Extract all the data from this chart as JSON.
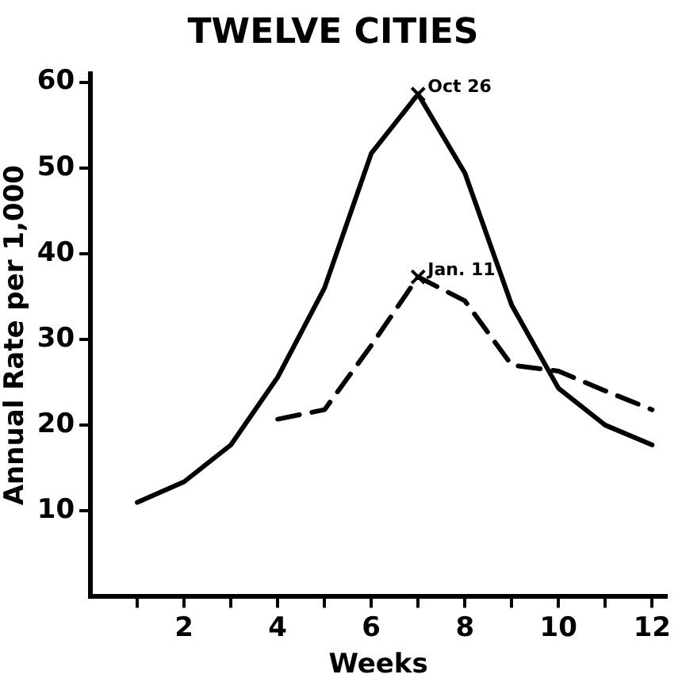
{
  "chart_data": {
    "type": "line",
    "title": "TWELVE CITIES",
    "xlabel": "Weeks",
    "ylabel": "Annual Rate per 1,000",
    "series": [
      {
        "color": "#000000",
        "line_style": "solid",
        "x": [
          1,
          2,
          3,
          4,
          5,
          6,
          7,
          8,
          9,
          10,
          11,
          12
        ],
        "values": [
          11,
          13.4,
          17.7,
          25.6,
          36,
          51.7,
          58.6,
          49.4,
          34,
          24.3,
          20,
          17.7
        ]
      },
      {
        "color": "#000000",
        "line_style": "dashed",
        "x": [
          4,
          5,
          6,
          7,
          8,
          9,
          10,
          11,
          12
        ],
        "values": [
          20.7,
          21.8,
          29.3,
          37.3,
          34.5,
          27,
          26.3,
          24,
          21.8
        ]
      }
    ],
    "xlim": [
      0,
      12.3
    ],
    "ylim": [
      0,
      61
    ],
    "xticks": [
      {
        "value": 1,
        "label": null
      },
      2,
      {
        "value": 3,
        "label": null
      },
      4,
      {
        "value": 5,
        "label": null
      },
      6,
      {
        "value": 7,
        "label": null
      },
      8,
      {
        "value": 9,
        "label": null
      },
      10,
      {
        "value": 11,
        "label": null
      },
      12
    ],
    "yticks": [
      10,
      20,
      30,
      40,
      50,
      60
    ],
    "grid": false,
    "legend": false,
    "marker": "none",
    "annotations": [
      {
        "text": "Oct 26",
        "x": 7,
        "y": 58.6
      },
      {
        "text": "Jan. 11",
        "x": 7,
        "y": 37.3
      }
    ]
  }
}
